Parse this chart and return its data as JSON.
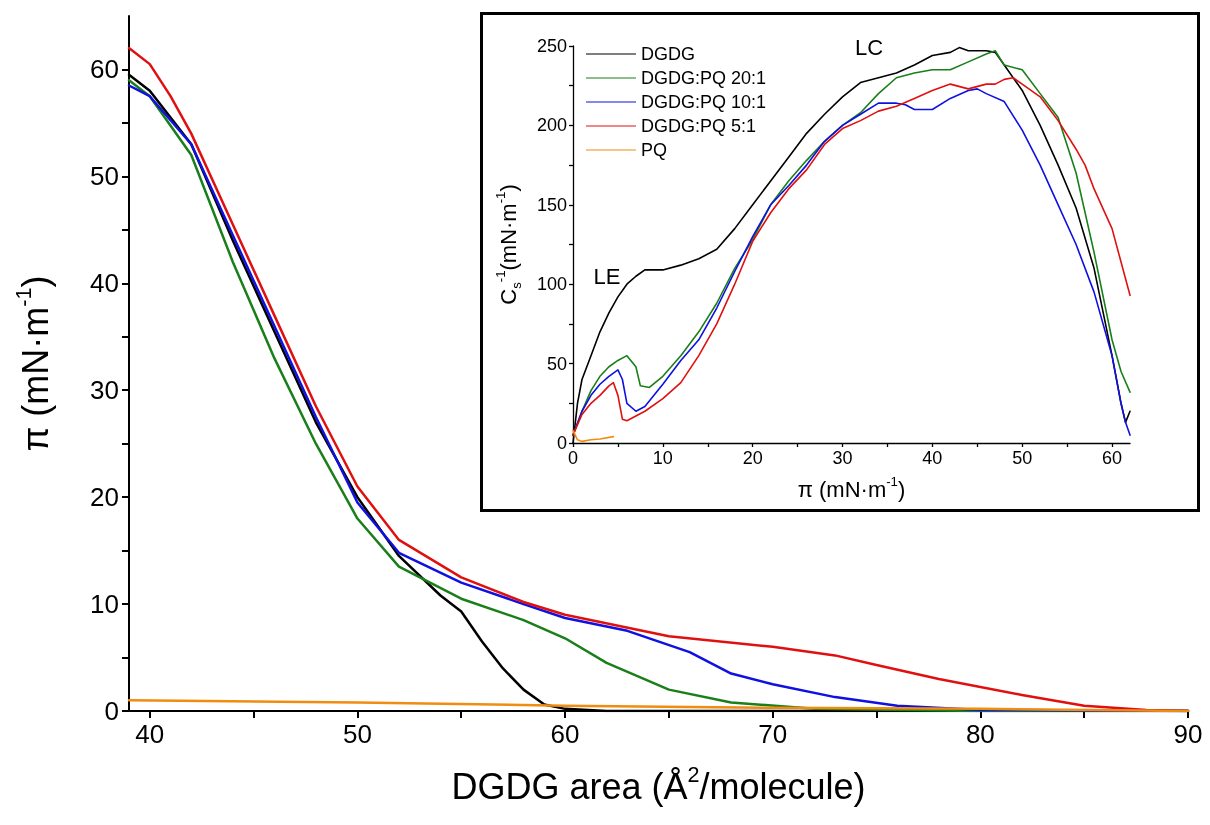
{
  "chart_data": [
    {
      "type": "line",
      "xlabel": "DGDG area (Å$^{2}$/molecule)",
      "ylabel": "π (mN·m$^{-1}$)",
      "xlim": [
        39,
        90
      ],
      "ylim": [
        0,
        65
      ],
      "xticks": [
        40,
        {
          "value": 45,
          "label": null
        },
        50,
        {
          "value": 55,
          "label": null
        },
        60,
        {
          "value": 65,
          "label": null
        },
        70,
        {
          "value": 75,
          "label": null
        },
        80,
        {
          "value": 85,
          "label": null
        },
        90
      ],
      "yticks": [
        0,
        {
          "value": 5,
          "label": null
        },
        10,
        {
          "value": 15,
          "label": null
        },
        20,
        {
          "value": 25,
          "label": null
        },
        30,
        {
          "value": 35,
          "label": null
        },
        40,
        {
          "value": 45,
          "label": null
        },
        50,
        {
          "value": 55,
          "label": null
        },
        60
      ],
      "grid": false,
      "legend": false,
      "marker": "none",
      "line_style": "solid",
      "series": [
        {
          "color": "#000000",
          "x": [
            39,
            40,
            42,
            44,
            46,
            48,
            50,
            52,
            54,
            55,
            56,
            57,
            58,
            59,
            60,
            62,
            70,
            80,
            90
          ],
          "values": [
            59.5,
            58,
            53,
            44,
            35.5,
            27,
            20,
            14.5,
            10.8,
            9.3,
            6.5,
            4,
            2,
            0.6,
            0.2,
            0,
            0,
            0,
            0
          ]
        },
        {
          "color": "#1a7f1a",
          "x": [
            39,
            40,
            42,
            44,
            46,
            48,
            50,
            52,
            55,
            58,
            60,
            62,
            65,
            68,
            72,
            80,
            90
          ],
          "values": [
            59,
            57.5,
            52,
            42,
            33,
            25,
            18,
            13.5,
            10.5,
            8.5,
            6.8,
            4.5,
            2,
            0.8,
            0.2,
            0,
            0
          ]
        },
        {
          "color": "#1010e0",
          "x": [
            39,
            40,
            42,
            44,
            46,
            48,
            50,
            52,
            55,
            58,
            60,
            63,
            66,
            68,
            70,
            73,
            76,
            80,
            90
          ],
          "values": [
            58.5,
            57.5,
            53,
            44.5,
            36,
            27.5,
            19.5,
            14.8,
            12,
            10,
            8.7,
            7.5,
            5.5,
            3.5,
            2.5,
            1.3,
            0.5,
            0.1,
            0
          ]
        },
        {
          "color": "#e01010",
          "x": [
            39,
            40,
            41,
            42,
            44,
            46,
            48,
            50,
            52,
            55,
            58,
            60,
            65,
            70,
            73,
            75,
            78,
            82,
            85,
            88,
            90
          ],
          "values": [
            62,
            60.5,
            57.5,
            54,
            45.5,
            37,
            28.5,
            21,
            16,
            12.5,
            10.2,
            9,
            7,
            6,
            5.2,
            4.3,
            3,
            1.5,
            0.5,
            0.1,
            0
          ]
        },
        {
          "color": "#f08c10",
          "x": [
            39,
            50,
            60,
            70,
            80,
            90
          ],
          "values": [
            1,
            0.8,
            0.5,
            0.3,
            0.2,
            0
          ]
        }
      ]
    },
    {
      "type": "line",
      "xlabel": "π (mN·m$^{-1}$)",
      "ylabel": "C$_{s}$$^{-1}$(mN·m$^{-1}$)",
      "xlim": [
        0,
        62
      ],
      "ylim": [
        0,
        250
      ],
      "xticks": [
        0,
        {
          "value": 5,
          "label": null
        },
        10,
        {
          "value": 15,
          "label": null
        },
        20,
        {
          "value": 25,
          "label": null
        },
        30,
        {
          "value": 35,
          "label": null
        },
        40,
        {
          "value": 45,
          "label": null
        },
        50,
        {
          "value": 55,
          "label": null
        },
        60
      ],
      "yticks": [
        0,
        {
          "value": 25,
          "label": null
        },
        50,
        {
          "value": 75,
          "label": null
        },
        100,
        {
          "value": 125,
          "label": null
        },
        150,
        {
          "value": 175,
          "label": null
        },
        200,
        {
          "value": 225,
          "label": null
        },
        250
      ],
      "grid": false,
      "legend": "top left",
      "marker": "none",
      "line_style": "solid",
      "annotations": [
        "LE",
        "LC"
      ],
      "series": [
        {
          "name": "DGDG",
          "color": "#000000",
          "x": [
            0,
            0.5,
            1,
            2,
            3,
            4,
            5,
            6,
            7,
            8,
            10,
            12,
            14,
            16,
            18,
            20,
            22,
            24,
            26,
            28,
            30,
            32,
            34,
            36,
            38,
            40,
            42,
            43,
            44,
            46,
            47,
            48,
            50,
            52,
            54,
            56,
            58,
            60,
            61,
            61.5,
            62
          ],
          "values": [
            0,
            25,
            40,
            55,
            70,
            82,
            92,
            100,
            105,
            109,
            109,
            112,
            116,
            122,
            135,
            150,
            165,
            180,
            195,
            207,
            218,
            227,
            230,
            233,
            238,
            244,
            246,
            249,
            247,
            247,
            246,
            238,
            222,
            200,
            175,
            148,
            110,
            55,
            25,
            13,
            20
          ]
        },
        {
          "name": "DGDG:PQ 20:1",
          "color": "#1a7f1a",
          "x": [
            0,
            1,
            2,
            3,
            4,
            5,
            6,
            7,
            7.5,
            8.5,
            10,
            12,
            14,
            16,
            18,
            20,
            22,
            24,
            26,
            28,
            30,
            32,
            34,
            36,
            38,
            40,
            42,
            44,
            46,
            47,
            48,
            50,
            52,
            54,
            56,
            58,
            60,
            61,
            62
          ],
          "values": [
            5,
            20,
            33,
            42,
            48,
            52,
            55,
            48,
            36,
            35,
            42,
            55,
            70,
            88,
            110,
            128,
            150,
            165,
            178,
            190,
            200,
            208,
            220,
            230,
            233,
            235,
            235,
            240,
            245,
            247,
            238,
            235,
            220,
            205,
            170,
            120,
            65,
            45,
            32
          ]
        },
        {
          "name": "DGDG:PQ 10:1",
          "color": "#1010e0",
          "x": [
            0,
            1,
            2,
            3,
            4,
            5,
            5.5,
            6,
            7,
            8,
            10,
            12,
            14,
            16,
            18,
            20,
            22,
            24,
            26,
            28,
            30,
            32,
            34,
            36,
            37,
            38,
            40,
            42,
            44,
            45,
            46,
            48,
            50,
            52,
            54,
            56,
            58,
            60,
            61,
            61.5,
            62
          ],
          "values": [
            5,
            20,
            30,
            37,
            42,
            46,
            40,
            25,
            20,
            23,
            37,
            52,
            65,
            85,
            108,
            130,
            150,
            162,
            175,
            190,
            200,
            207,
            214,
            214,
            213,
            210,
            210,
            217,
            222,
            223,
            220,
            215,
            197,
            175,
            150,
            125,
            95,
            55,
            25,
            13,
            5
          ]
        },
        {
          "name": "DGDG:PQ 5:1",
          "color": "#e01010",
          "x": [
            0,
            1,
            2,
            3,
            4,
            4.5,
            5,
            5.5,
            6,
            7,
            8,
            10,
            12,
            14,
            16,
            18,
            20,
            22,
            24,
            26,
            28,
            30,
            32,
            34,
            36,
            38,
            40,
            42,
            44,
            46,
            47,
            48,
            49,
            50,
            52,
            54,
            56,
            57,
            58,
            60,
            62
          ],
          "values": [
            5,
            18,
            25,
            30,
            36,
            38,
            30,
            15,
            14,
            17,
            20,
            28,
            38,
            55,
            75,
            100,
            127,
            145,
            160,
            172,
            188,
            198,
            203,
            209,
            212,
            217,
            222,
            226,
            223,
            226,
            226,
            229,
            230,
            226,
            218,
            203,
            185,
            175,
            160,
            135,
            93
          ]
        },
        {
          "name": "PQ",
          "color": "#f08c10",
          "x": [
            0,
            0.5,
            1,
            2,
            3,
            4.5
          ],
          "values": [
            8,
            2,
            1,
            2,
            2.5,
            4
          ]
        }
      ]
    }
  ]
}
